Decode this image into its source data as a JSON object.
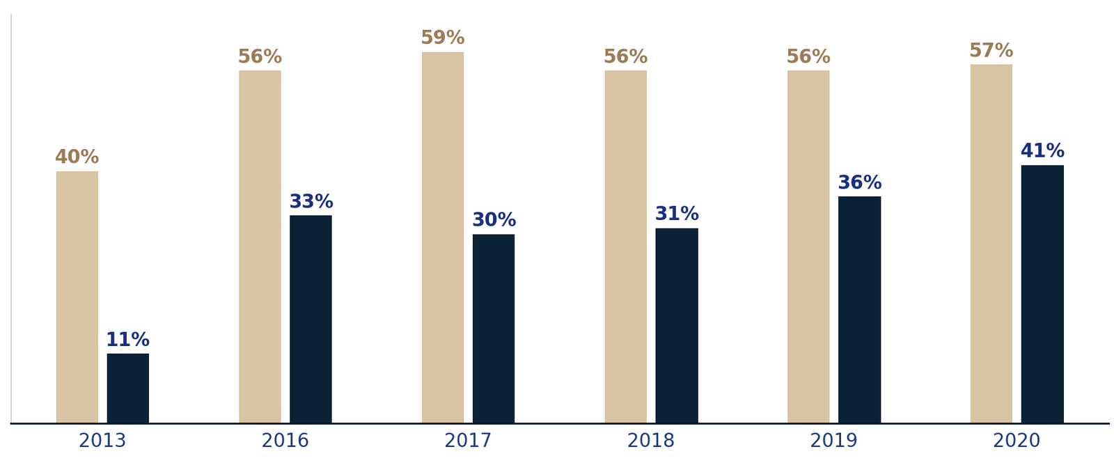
{
  "chart_data": {
    "type": "bar",
    "categories": [
      "2013",
      "2016",
      "2017",
      "2018",
      "2019",
      "2020"
    ],
    "series": [
      {
        "color": "#d8c4a2",
        "values": [
          40,
          56,
          59,
          56,
          56,
          57
        ],
        "value_labels": [
          "40%",
          "56%",
          "59%",
          "56%",
          "56%",
          "57%"
        ]
      },
      {
        "color": "#0b2136",
        "values": [
          11,
          33,
          30,
          31,
          36,
          41
        ],
        "value_labels": [
          "11%",
          "33%",
          "30%",
          "31%",
          "36%",
          "41%"
        ]
      }
    ],
    "ylim": [
      0,
      65
    ],
    "yticks": [],
    "grid": false,
    "data_labels": true,
    "tick_labels": "x"
  }
}
